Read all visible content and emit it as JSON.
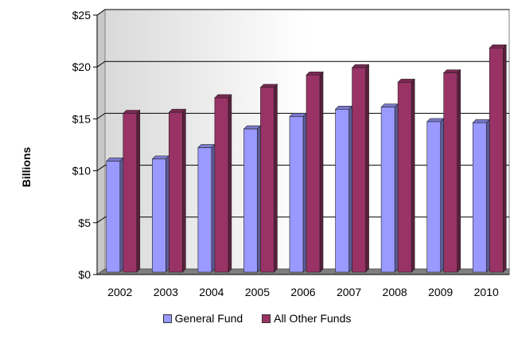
{
  "chart_data": {
    "type": "bar",
    "title": "",
    "xlabel": "",
    "ylabel": "Billions",
    "categories": [
      "2002",
      "2003",
      "2004",
      "2005",
      "2006",
      "2007",
      "2008",
      "2009",
      "2010"
    ],
    "series": [
      {
        "name": "General Fund",
        "color": "#9999FF",
        "values": [
          10.7,
          10.9,
          12.0,
          13.8,
          15.0,
          15.7,
          15.9,
          14.5,
          14.4
        ]
      },
      {
        "name": "All Other Funds",
        "color": "#993366",
        "values": [
          15.3,
          15.4,
          16.8,
          17.8,
          19.0,
          19.7,
          18.3,
          19.2,
          21.6
        ]
      }
    ],
    "ylim": [
      0,
      25
    ],
    "yticks": [
      0,
      5,
      10,
      15,
      20,
      25
    ],
    "ytick_labels": [
      "$0",
      "$5",
      "$10",
      "$15",
      "$20",
      "$25"
    ],
    "grid": true,
    "legend_position": "bottom"
  }
}
